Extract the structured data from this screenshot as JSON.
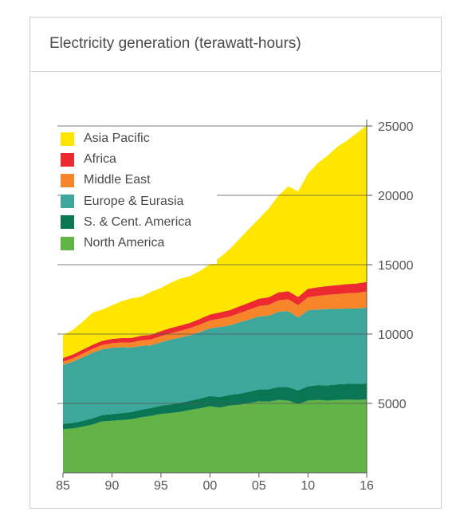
{
  "title": "Electricity generation (terawatt-hours)",
  "colors": {
    "asia_pacific": "#ffe600",
    "africa": "#ec2a30",
    "middle_east": "#f7852a",
    "europe_eurasia": "#3ea79c",
    "s_cent_america": "#0a7654",
    "north_america": "#62b447"
  },
  "chart_data": {
    "type": "area",
    "stacked": true,
    "title": "Electricity generation (terawatt-hours)",
    "x": [
      1985,
      1986,
      1987,
      1988,
      1989,
      1990,
      1991,
      1992,
      1993,
      1994,
      1995,
      1996,
      1997,
      1998,
      1999,
      2000,
      2001,
      2002,
      2003,
      2004,
      2005,
      2006,
      2007,
      2008,
      2009,
      2010,
      2011,
      2012,
      2013,
      2014,
      2015,
      2016
    ],
    "x_tick_labels": [
      "85",
      "90",
      "95",
      "00",
      "05",
      "10",
      "16"
    ],
    "x_tick_values": [
      1985,
      1990,
      1995,
      2000,
      2005,
      2010,
      2016
    ],
    "y_tick_values": [
      5000,
      10000,
      15000,
      20000,
      25000
    ],
    "y_tick_labels": [
      "5000",
      "10000",
      "15000",
      "20000",
      "25000"
    ],
    "ylim": [
      0,
      25000
    ],
    "y_axis_side": "right",
    "legend_position": "top-left",
    "series": [
      {
        "name": "North America",
        "key": "north_america",
        "values": [
          3150,
          3200,
          3320,
          3480,
          3700,
          3750,
          3800,
          3860,
          4000,
          4100,
          4240,
          4300,
          4400,
          4530,
          4650,
          4800,
          4700,
          4850,
          4900,
          5020,
          5150,
          5120,
          5250,
          5200,
          4950,
          5200,
          5250,
          5200,
          5250,
          5270,
          5260,
          5280
        ]
      },
      {
        "name": "S. & Cent. America",
        "key": "s_cent_america",
        "values": [
          380,
          400,
          420,
          440,
          460,
          480,
          500,
          520,
          545,
          570,
          600,
          625,
          650,
          670,
          700,
          730,
          760,
          770,
          800,
          830,
          860,
          900,
          940,
          970,
          990,
          1030,
          1070,
          1100,
          1120,
          1140,
          1150,
          1160
        ]
      },
      {
        "name": "Europe & Eurasia",
        "key": "europe_eurasia",
        "values": [
          4250,
          4400,
          4580,
          4720,
          4740,
          4780,
          4750,
          4650,
          4600,
          4520,
          4570,
          4680,
          4700,
          4720,
          4800,
          4880,
          5050,
          5000,
          5150,
          5200,
          5260,
          5300,
          5420,
          5480,
          5250,
          5480,
          5450,
          5500,
          5450,
          5430,
          5430,
          5470
        ]
      },
      {
        "name": "Middle East",
        "key": "middle_east",
        "values": [
          230,
          250,
          270,
          290,
          310,
          330,
          350,
          370,
          400,
          420,
          440,
          460,
          490,
          510,
          540,
          570,
          600,
          630,
          660,
          700,
          740,
          780,
          820,
          860,
          890,
          940,
          980,
          1020,
          1060,
          1100,
          1130,
          1160
        ]
      },
      {
        "name": "Africa",
        "key": "africa",
        "values": [
          260,
          270,
          280,
          290,
          300,
          310,
          315,
          320,
          330,
          340,
          360,
          370,
          380,
          390,
          410,
          430,
          450,
          470,
          490,
          510,
          530,
          550,
          570,
          580,
          590,
          610,
          620,
          640,
          650,
          660,
          670,
          690
        ]
      },
      {
        "name": "Asia Pacific",
        "key": "asia_pacific",
        "values": [
          1650,
          1780,
          2010,
          2310,
          2250,
          2420,
          2660,
          2850,
          2820,
          3100,
          3110,
          3270,
          3380,
          3360,
          3460,
          3620,
          3950,
          4400,
          4850,
          5340,
          5780,
          6400,
          7000,
          7560,
          7620,
          8300,
          8950,
          9400,
          9970,
          10350,
          10860,
          11290
        ]
      }
    ]
  },
  "legend": [
    {
      "label": "Asia Pacific",
      "key": "asia_pacific"
    },
    {
      "label": "Africa",
      "key": "africa"
    },
    {
      "label": "Middle East",
      "key": "middle_east"
    },
    {
      "label": "Europe & Eurasia",
      "key": "europe_eurasia"
    },
    {
      "label": "S. & Cent. America",
      "key": "s_cent_america"
    },
    {
      "label": "North America",
      "key": "north_america"
    }
  ]
}
